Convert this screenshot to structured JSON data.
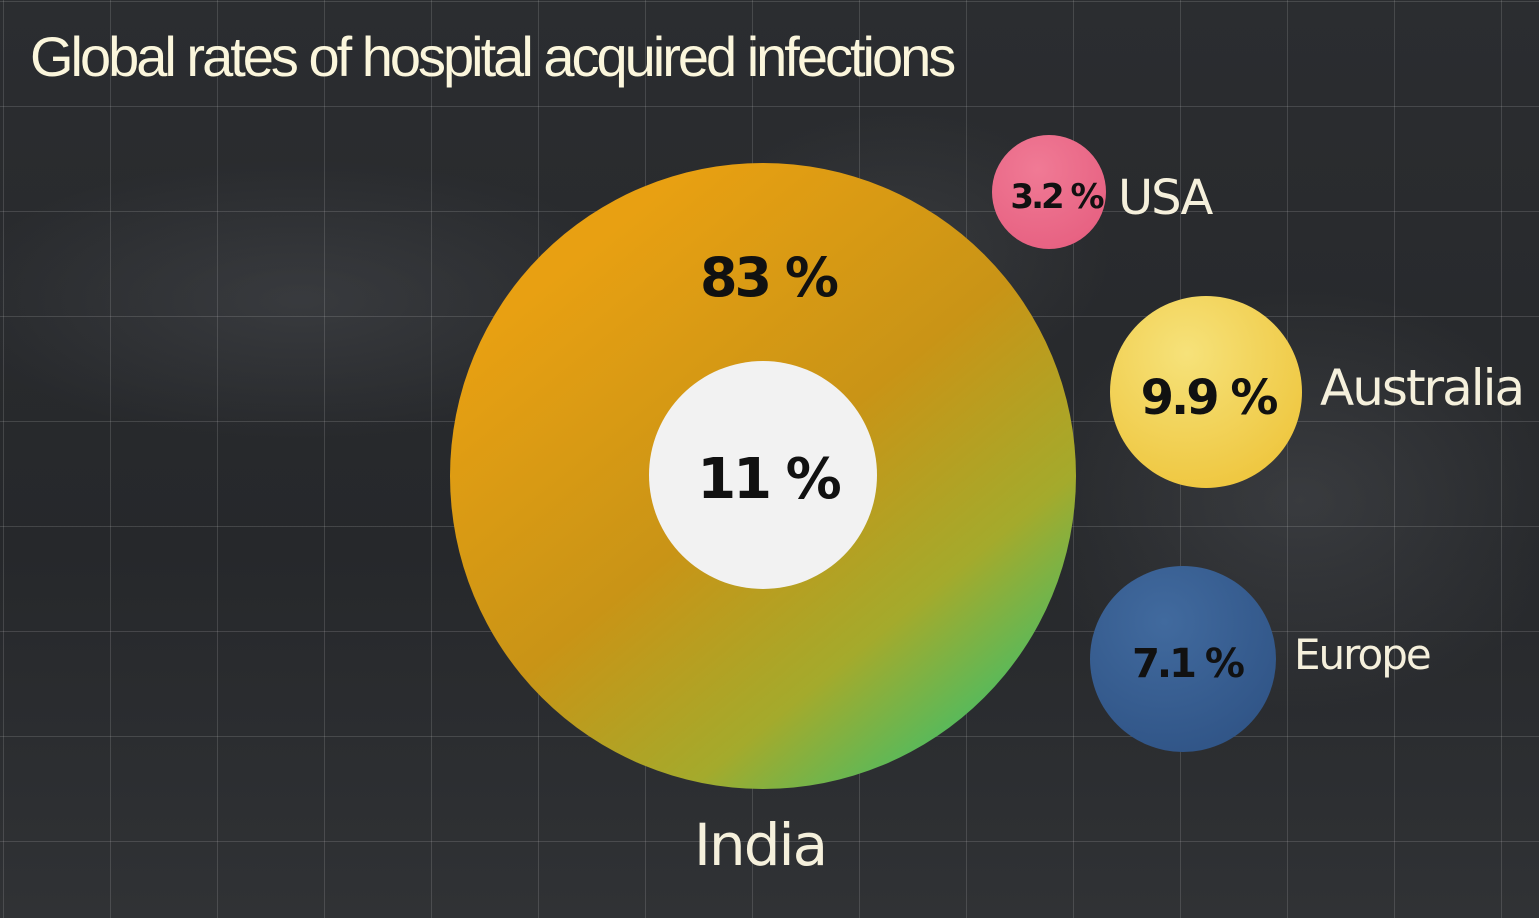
{
  "chart_data": {
    "type": "bubble",
    "title": "Global rates of hospital acquired infections",
    "series": [
      {
        "name": "India",
        "value_label": "83 %",
        "value": 83,
        "inner_value_label": "11 %",
        "inner_value": 11,
        "color": "#e8a012",
        "color_end": "#3fbf6a"
      },
      {
        "name": "USA",
        "value_label": "3.2 %",
        "value": 3.2,
        "color": "#ec6e8c"
      },
      {
        "name": "Australia",
        "value_label": "9.9 %",
        "value": 9.9,
        "color": "#f2d24f"
      },
      {
        "name": "Europe",
        "value_label": "7.1 %",
        "value": 7.1,
        "color": "#3a5f94"
      }
    ],
    "inner_color": "#f2f2f2",
    "grid": true
  }
}
